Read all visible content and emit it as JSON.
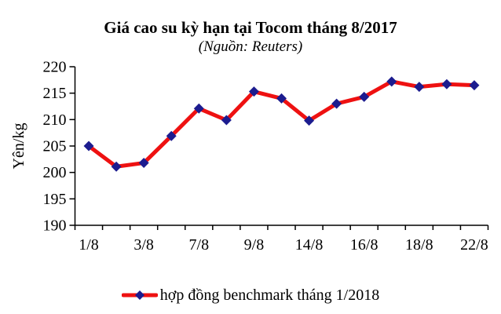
{
  "chart_data": {
    "type": "line",
    "title": "Giá cao su kỳ hạn tại Tocom tháng 8/2017",
    "subtitle": "(Nguồn: Reuters)",
    "xlabel": "",
    "ylabel": "Yên/kg",
    "ylim": [
      190,
      220
    ],
    "yticks": [
      220,
      215,
      210,
      205,
      200,
      195,
      190
    ],
    "categories": [
      "1/8",
      "",
      "3/8",
      "",
      "7/8",
      "",
      "9/8",
      "",
      "14/8",
      "",
      "16/8",
      "",
      "18/8",
      "",
      "22/8"
    ],
    "x_tick_labels_shown": [
      "1/8",
      "3/8",
      "7/8",
      "9/8",
      "14/8",
      "16/8",
      "18/8",
      "22/8"
    ],
    "series": [
      {
        "name": "hợp đồng benchmark tháng 1/2018",
        "values": [
          205.0,
          201.1,
          201.8,
          206.9,
          212.1,
          209.9,
          215.3,
          214.0,
          209.8,
          213.0,
          214.3,
          217.2,
          216.2,
          216.7,
          216.5
        ]
      }
    ],
    "legend_position": "bottom",
    "grid": false,
    "marker": "diamond",
    "line_color": "#ee1111",
    "marker_color": "#1c1c8f",
    "axis_color": "#000000"
  }
}
